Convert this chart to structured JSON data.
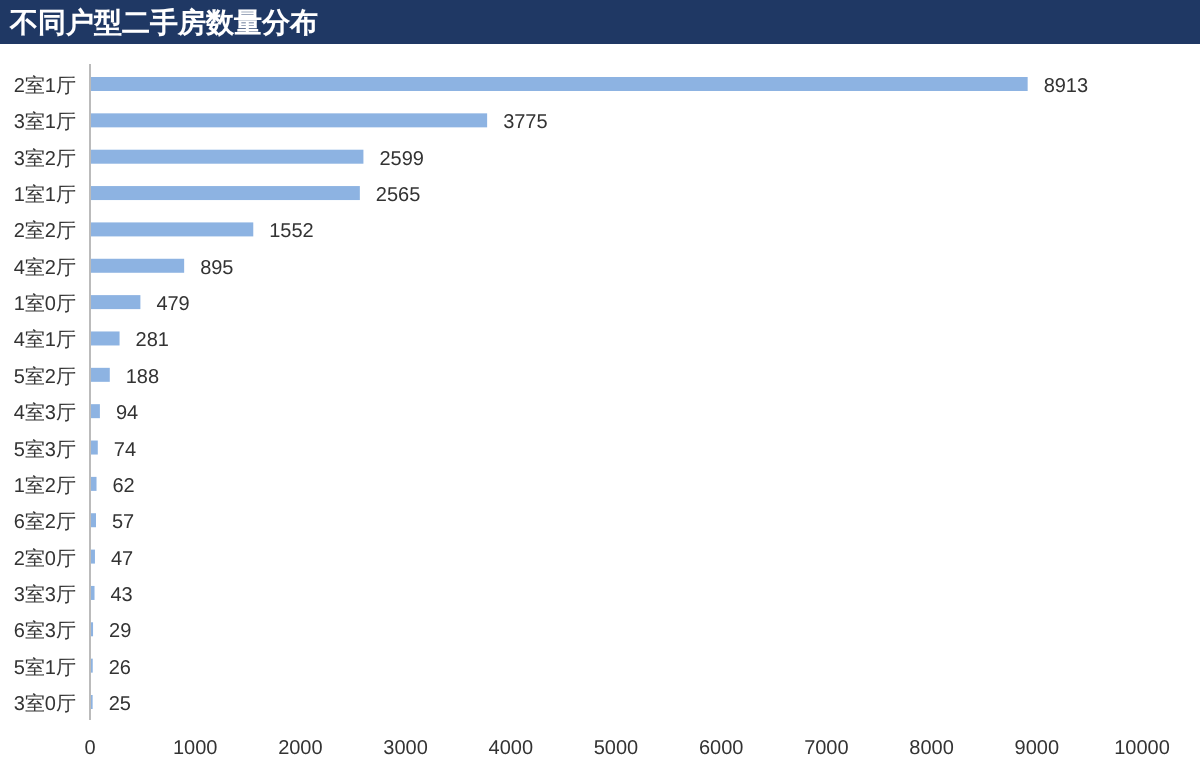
{
  "chart_data": {
    "type": "bar",
    "orientation": "horizontal",
    "title": "不同户型二手房数量分布",
    "categories": [
      "2室1厅",
      "3室1厅",
      "3室2厅",
      "1室1厅",
      "2室2厅",
      "4室2厅",
      "1室0厅",
      "4室1厅",
      "5室2厅",
      "4室3厅",
      "5室3厅",
      "1室2厅",
      "6室2厅",
      "2室0厅",
      "3室3厅",
      "6室3厅",
      "5室1厅",
      "3室0厅"
    ],
    "values": [
      8913,
      3775,
      2599,
      2565,
      1552,
      895,
      479,
      281,
      188,
      94,
      74,
      62,
      57,
      47,
      43,
      29,
      26,
      25
    ],
    "color": "#8db3e2",
    "xlim": [
      0,
      10000
    ],
    "xticks": [
      0,
      1000,
      2000,
      3000,
      4000,
      5000,
      6000,
      7000,
      8000,
      9000,
      10000
    ],
    "data_labels": true,
    "grid": false
  }
}
